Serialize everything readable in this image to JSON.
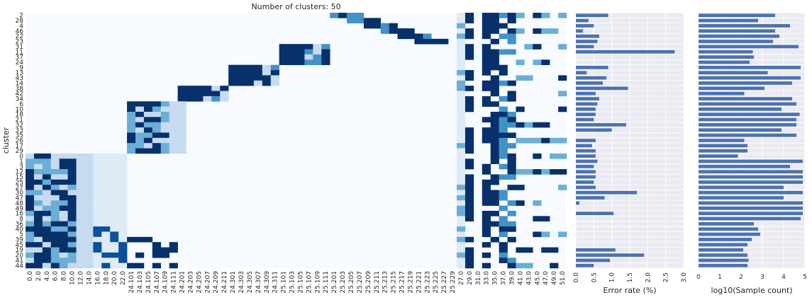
{
  "chart_data": [
    {
      "type": "heatmap",
      "title": "Number of clusters: 50",
      "ylabel": "cluster",
      "xlabel": "",
      "rows": [
        "2",
        "28",
        "4",
        "46",
        "22",
        "23",
        "31",
        "11",
        "37",
        "24",
        "9",
        "13",
        "43",
        "14",
        "38",
        "42",
        "34",
        "6",
        "10",
        "18",
        "21",
        "32",
        "33",
        "35",
        "26",
        "17",
        "29",
        "0",
        "1",
        "3",
        "12",
        "15",
        "25",
        "27",
        "30",
        "47",
        "48",
        "49",
        "16",
        "8",
        "36",
        "40",
        "5",
        "39",
        "45",
        "19",
        "20",
        "41",
        "44"
      ],
      "columns": [
        "0.0",
        "2.0",
        "4.0",
        "6.0",
        "8.0",
        "10.0",
        "12.0",
        "14.0",
        "16.0",
        "18.0",
        "20.0",
        "22.0",
        "24.101",
        "24.103",
        "24.105",
        "24.107",
        "24.109",
        "24.111",
        "24.201",
        "24.203",
        "24.205",
        "24.207",
        "24.209",
        "24.211",
        "24.301",
        "24.303",
        "24.305",
        "24.307",
        "24.309",
        "24.311",
        "25.101",
        "25.103",
        "25.105",
        "25.107",
        "25.109",
        "25.111",
        "25.201",
        "25.203",
        "25.205",
        "25.207",
        "25.209",
        "25.211",
        "25.213",
        "25.215",
        "25.217",
        "25.219",
        "25.221",
        "25.223",
        "25.225",
        "25.227",
        "25.229",
        "27.0",
        "29.0",
        "31.0",
        "33.0",
        "35.0",
        "37.0",
        "39.0",
        "41.0",
        "43.0",
        "45.0",
        "47.0",
        "49.0",
        "51.0"
      ],
      "colormap": "Blues",
      "colors": {
        "low": "#f7fbff",
        "mid": "#6baed6",
        "high": "#08306b"
      }
    },
    {
      "type": "bar",
      "orientation": "horizontal",
      "xlabel": "Error rate (%)",
      "xticks": [
        "0.0",
        "0.5",
        "1.0",
        "1.5",
        "2.0",
        "2.5",
        "3.0"
      ],
      "xlim": [
        0,
        3.0
      ],
      "values": [
        0.9,
        0.35,
        0.5,
        0.2,
        0.65,
        0.6,
        0.5,
        2.75,
        0,
        0,
        0.9,
        0.3,
        0.85,
        0.75,
        1.45,
        0.55,
        0.65,
        0.6,
        0.55,
        0.55,
        0.5,
        1.4,
        1.0,
        0,
        0.55,
        0.45,
        0.55,
        0.55,
        0.6,
        0.5,
        0.55,
        0.55,
        0.5,
        0.55,
        1.7,
        0.8,
        0.1,
        0,
        1.05,
        0,
        0,
        0,
        0,
        0,
        0,
        1.1,
        1.9,
        0.95,
        0.5
      ],
      "bar_color": "#4c72b0",
      "grid": true
    },
    {
      "type": "bar",
      "orientation": "horizontal",
      "xlabel": "log10(Sample count)",
      "xticks": [
        "0",
        "1",
        "2",
        "3",
        "4",
        "5"
      ],
      "xlim": [
        0,
        5
      ],
      "values": [
        3.6,
        2.8,
        4.3,
        3.6,
        3.8,
        3.5,
        4.7,
        2.55,
        2.6,
        2.4,
        4.8,
        3.25,
        4.8,
        4.4,
        3.1,
        2.15,
        4.4,
        4.6,
        3.9,
        4.75,
        4.6,
        4.6,
        3.9,
        4.6,
        2.15,
        2.3,
        2.3,
        1.85,
        4.9,
        4.3,
        4.9,
        4.9,
        4.9,
        4.0,
        4.9,
        4.0,
        4.9,
        4.9,
        4.9,
        4.8,
        2.6,
        2.8,
        2.9,
        2.5,
        2.3,
        2.1,
        2.3,
        2.35,
        2.3
      ],
      "bar_color": "#4c72b0",
      "grid": true
    }
  ]
}
